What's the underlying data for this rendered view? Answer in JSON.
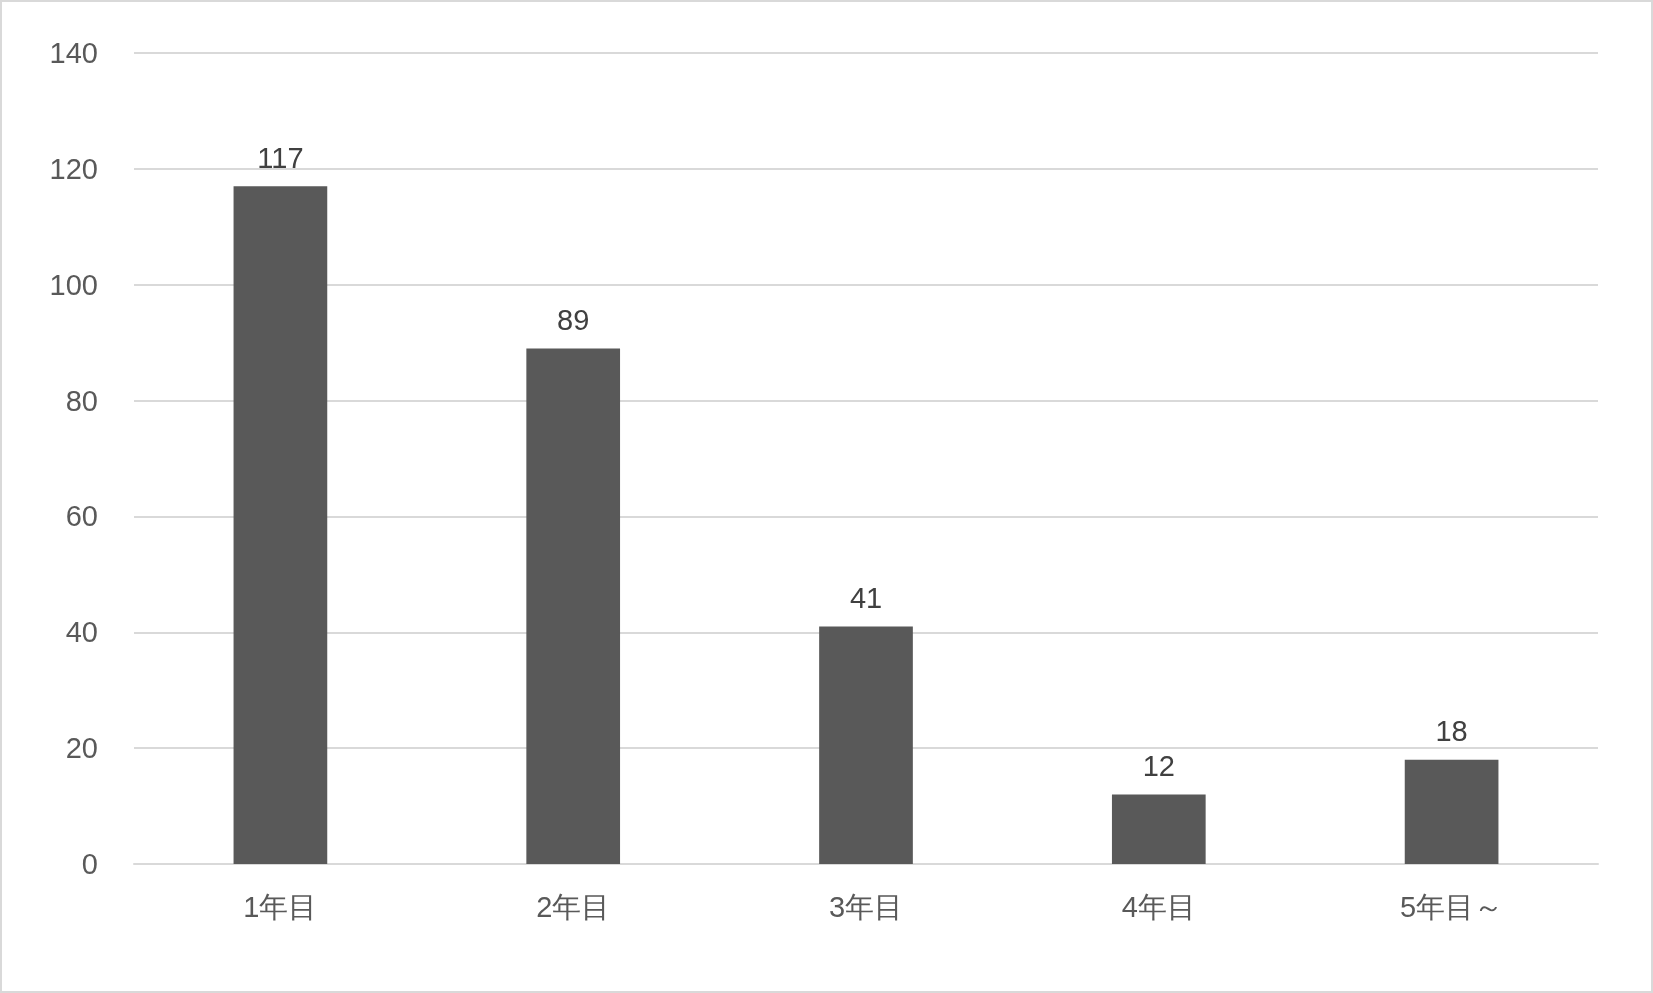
{
  "chart_data": {
    "type": "bar",
    "categories": [
      "1年目",
      "2年目",
      "3年目",
      "4年目",
      "5年目～"
    ],
    "values": [
      117,
      89,
      41,
      12,
      18
    ],
    "color": "#595959",
    "ylim": [
      0,
      140
    ],
    "yticks": [
      0,
      20,
      40,
      60,
      80,
      100,
      120,
      140
    ],
    "grid": "y",
    "data_labels": true
  }
}
